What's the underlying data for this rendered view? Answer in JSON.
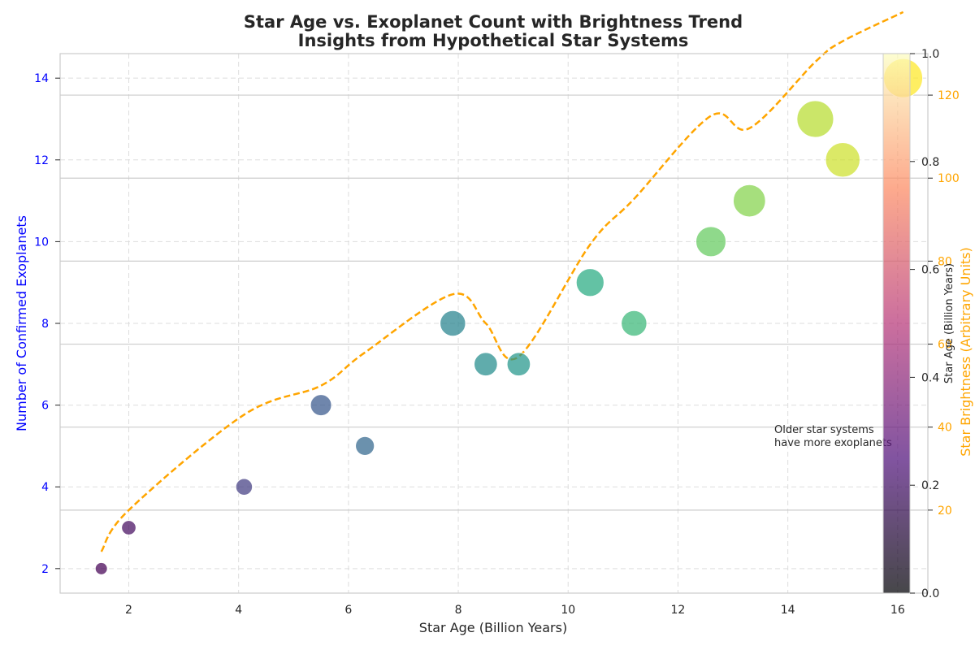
{
  "chart_data": {
    "type": "scatter",
    "title": "Star Age vs. Exoplanet Count with Brightness Trend",
    "subtitle": "Insights from Hypothetical Star Systems",
    "xlabel": "Star Age (Billion Years)",
    "ylabel": "Number of Confirmed Exoplanets",
    "y2label": "Star Brightness (Arbitrary Units)",
    "colorbar_label": "Star Age (Billion Years)",
    "xlim": [
      0.75,
      16.55
    ],
    "ylim": [
      1.4,
      14.6
    ],
    "y2lim": [
      0,
      130
    ],
    "xticks": [
      2,
      4,
      6,
      8,
      10,
      12,
      14,
      16
    ],
    "yticks": [
      2,
      4,
      6,
      8,
      10,
      12,
      14
    ],
    "y2ticks": [
      20,
      40,
      60,
      80,
      100,
      120
    ],
    "colorbar_ticks": [
      "0.0",
      "0.2",
      "0.4",
      "0.6",
      "0.8",
      "1.0"
    ],
    "colorbar_range": [
      0,
      1
    ],
    "grid": true,
    "colormap": "viridis",
    "scatter_series": {
      "x": [
        1.5,
        2.0,
        4.1,
        5.5,
        6.3,
        7.9,
        8.5,
        9.1,
        10.4,
        11.2,
        12.6,
        13.3,
        14.5,
        15.0,
        16.1
      ],
      "y": [
        2,
        3,
        4,
        6,
        5,
        8,
        7,
        7,
        9,
        8,
        10,
        11,
        13,
        12,
        14
      ]
    },
    "brightness_series": {
      "x": [
        1.5,
        2.0,
        4.1,
        5.5,
        6.3,
        7.9,
        8.5,
        9.1,
        10.4,
        11.2,
        12.6,
        13.3,
        14.5,
        15.0,
        16.1
      ],
      "y": [
        10,
        20,
        43,
        50,
        58,
        72,
        65,
        57,
        84,
        95,
        115,
        112,
        128,
        133,
        140
      ]
    },
    "annotation": "Older star systems\nhave more exoplanets",
    "colors": {
      "left_axis": "#0000ff",
      "right_axis": "#ffa500",
      "trend_line": "#ffa500",
      "grid": "#dddddd",
      "text": "#262626"
    }
  }
}
